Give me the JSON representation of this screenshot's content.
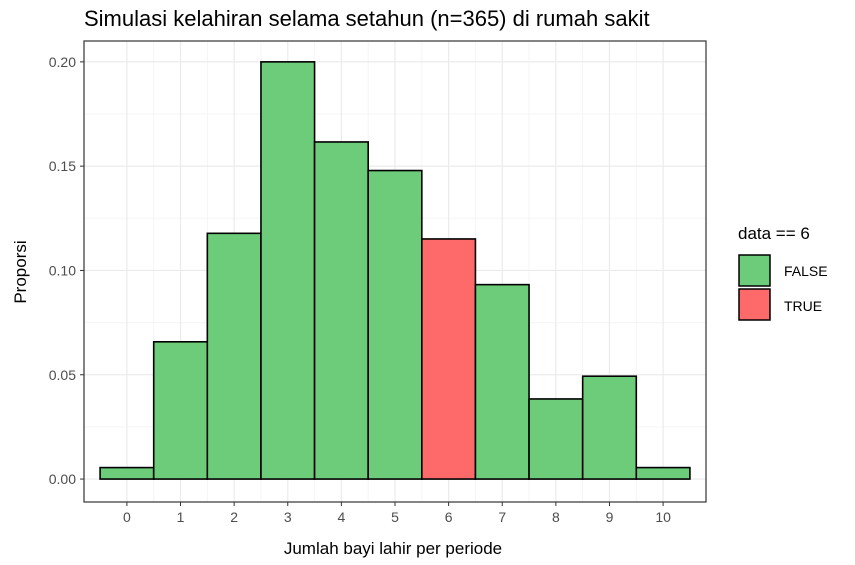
{
  "chart_data": {
    "type": "bar",
    "title": "Simulasi kelahiran selama setahun (n=365) di rumah sakit",
    "xlabel": "Jumlah bayi lahir per periode",
    "ylabel": "Proporsi",
    "categories": [
      "0",
      "1",
      "2",
      "3",
      "4",
      "5",
      "6",
      "7",
      "8",
      "9",
      "10"
    ],
    "values": [
      0.0055,
      0.0658,
      0.1178,
      0.2,
      0.1616,
      0.1479,
      0.1151,
      0.0932,
      0.0384,
      0.0493,
      0.0055
    ],
    "fill_group": [
      "FALSE",
      "FALSE",
      "FALSE",
      "FALSE",
      "FALSE",
      "FALSE",
      "TRUE",
      "FALSE",
      "FALSE",
      "FALSE",
      "FALSE"
    ],
    "ylim": [
      -0.011,
      0.21
    ],
    "xlim": [
      -0.8,
      10.8
    ],
    "yticks": [
      0.0,
      0.05,
      0.1,
      0.15,
      0.2
    ],
    "ytick_labels": [
      "0.00",
      "0.05",
      "0.10",
      "0.15",
      "0.20"
    ],
    "grid": true,
    "legend": {
      "title": "data == 6",
      "placement": "right",
      "entries": [
        {
          "label": "FALSE",
          "color": "#6dcc7a"
        },
        {
          "label": "TRUE",
          "color": "#fe6a6a"
        }
      ]
    },
    "colors": {
      "FALSE": "#6dcc7a",
      "TRUE": "#fe6a6a",
      "bar_outline": "#000000",
      "grid_major": "#ebebeb",
      "grid_minor": "#f5f5f5",
      "panel_border": "#333333"
    }
  }
}
